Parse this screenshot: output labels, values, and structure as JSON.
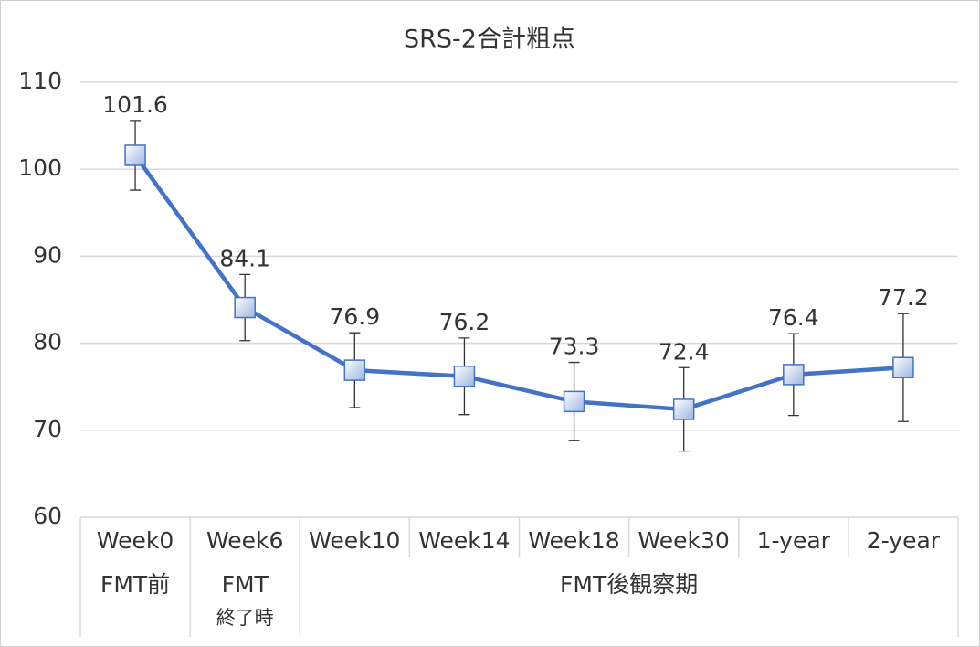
{
  "chart_data": {
    "type": "line",
    "title": "SRS-2合計粗点",
    "categories": [
      "Week0",
      "Week6",
      "Week10",
      "Week14",
      "Week18",
      "Week30",
      "1-year",
      "2-year"
    ],
    "groups": [
      {
        "lines": [
          "FMT前"
        ],
        "members": [
          "Week0"
        ]
      },
      {
        "lines": [
          "FMT",
          "終了時"
        ],
        "members": [
          "Week6"
        ]
      },
      {
        "lines": [
          "FMT後観察期"
        ],
        "members": [
          "Week10",
          "Week14",
          "Week18",
          "Week30",
          "1-year",
          "2-year"
        ]
      }
    ],
    "series": [
      {
        "name": "SRS-2合計粗点",
        "color": "#4472c4",
        "values": [
          101.6,
          84.1,
          76.9,
          76.2,
          73.3,
          72.4,
          76.4,
          77.2
        ],
        "errors": [
          4.0,
          3.8,
          4.3,
          4.4,
          4.5,
          4.8,
          4.7,
          6.2
        ]
      }
    ],
    "ylim": [
      60,
      110
    ],
    "yticks": [
      60,
      70,
      80,
      90,
      100,
      110
    ],
    "grid": true
  }
}
